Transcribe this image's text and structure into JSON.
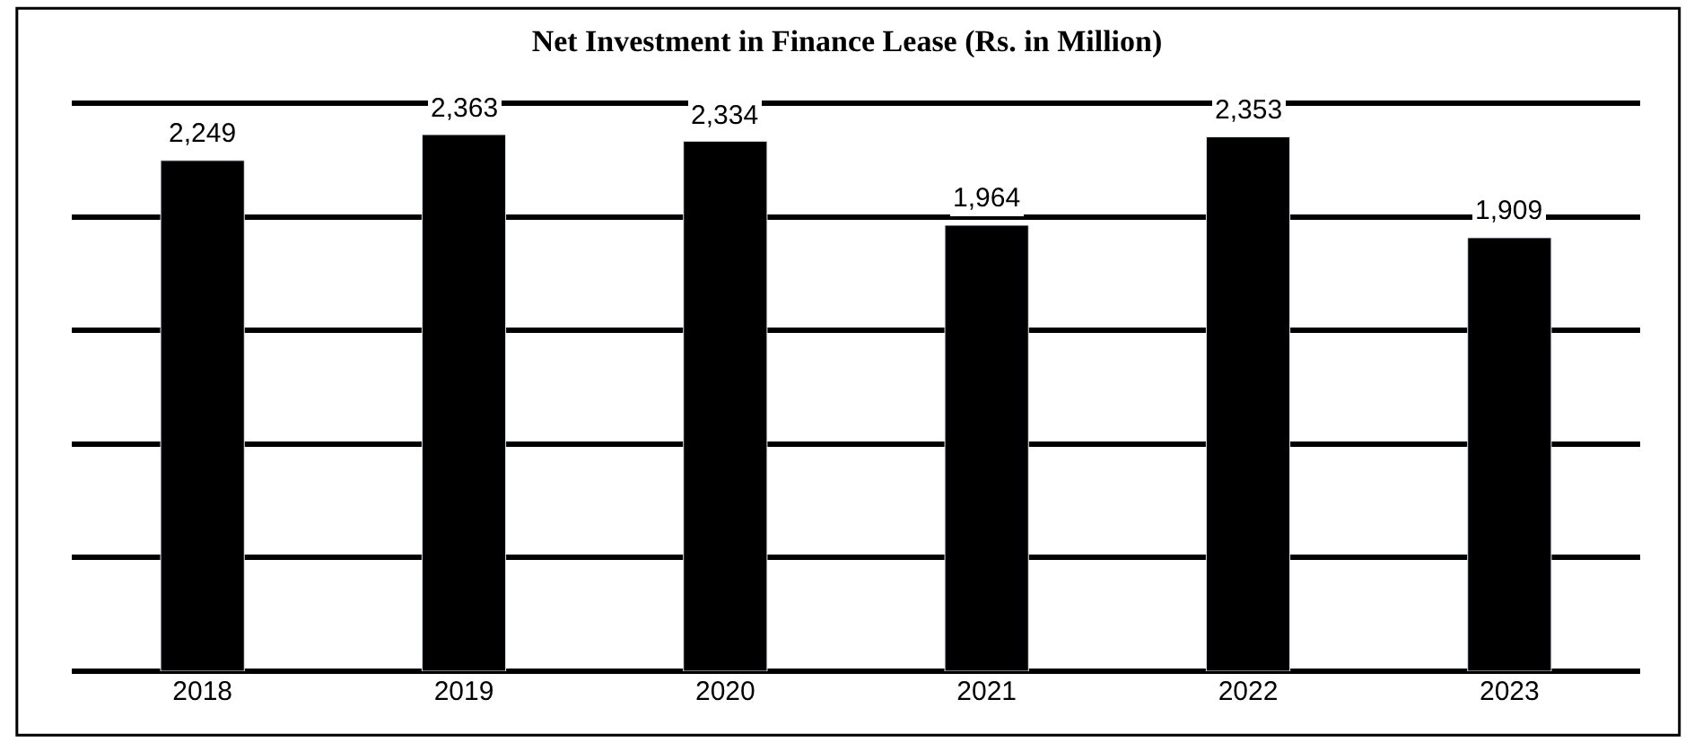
{
  "chart_data": {
    "type": "bar",
    "title": "Net Investment in Finance Lease (Rs. in Million)",
    "categories": [
      "2018",
      "2019",
      "2020",
      "2021",
      "2022",
      "2023"
    ],
    "values": [
      2249,
      2363,
      2334,
      1964,
      2353,
      1909
    ],
    "color": "#000000",
    "value_labels": [
      "2,249",
      "2,363",
      "2,334",
      "1,964",
      "2,353",
      "1,909"
    ],
    "grid": "y",
    "tick_labels": "x"
  }
}
